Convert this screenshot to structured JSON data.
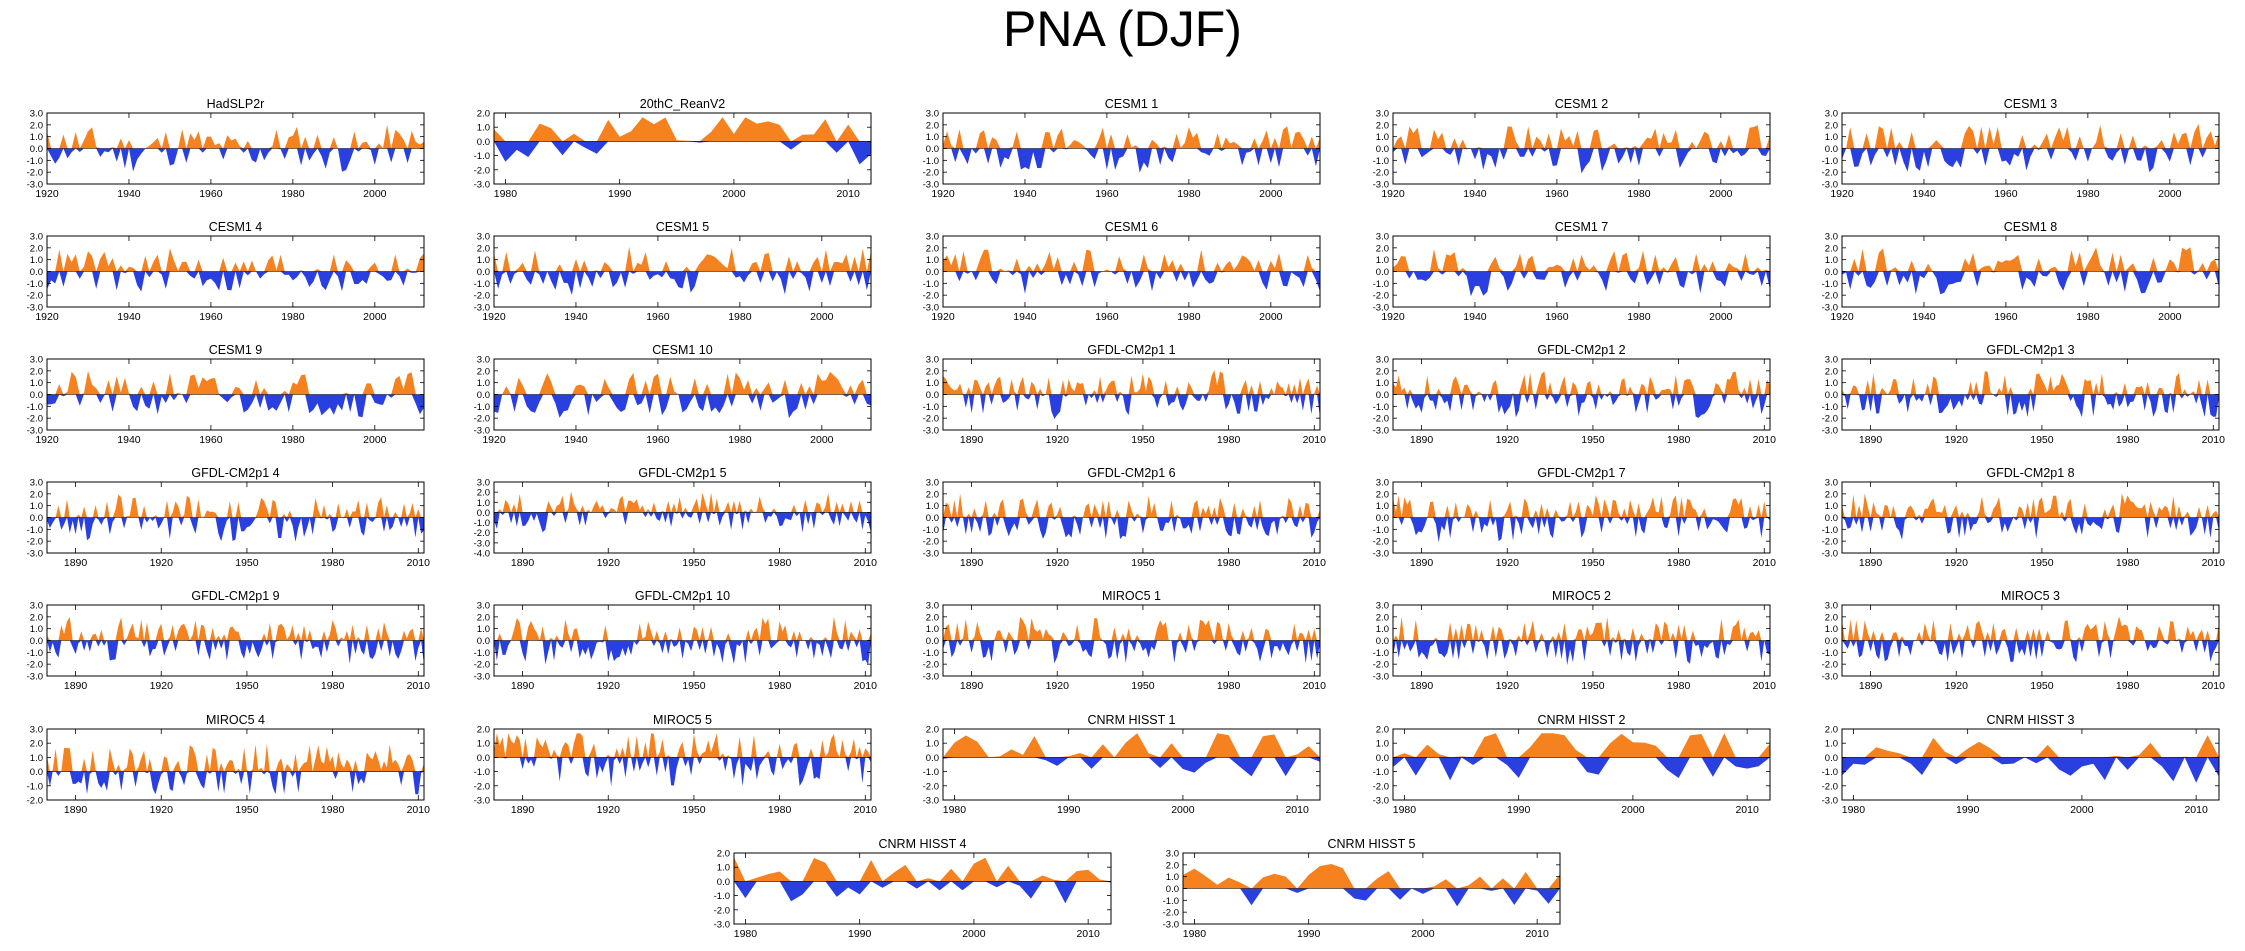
{
  "figure": {
    "title": "PNA (DJF)"
  },
  "colors": {
    "positive": "#f6821f",
    "negative": "#2a3fe0",
    "axis": "#000000",
    "background": "#ffffff"
  },
  "chart_data": [
    {
      "type": "area",
      "title": "HadSLP2r",
      "x_start": 1920,
      "x_end": 2012,
      "xticks": [
        1920,
        1940,
        1960,
        1980,
        2000
      ],
      "yticks": [
        3,
        2,
        1,
        0,
        -1,
        -2,
        -3
      ],
      "ylim": [
        -3,
        3
      ],
      "n": 93,
      "seed": 11,
      "period": 1.4
    },
    {
      "type": "area",
      "title": "20thC_ReanV2",
      "x_start": 1979,
      "x_end": 2012,
      "xticks": [
        1980,
        1990,
        2000,
        2010
      ],
      "yticks": [
        2,
        1,
        0,
        -1,
        -2,
        -3
      ],
      "ylim": [
        -3,
        2
      ],
      "n": 34,
      "seed": 12,
      "period": 4
    },
    {
      "type": "area",
      "title": "CESM1 1",
      "x_start": 1920,
      "x_end": 2012,
      "xticks": [
        1920,
        1940,
        1960,
        1980,
        2000
      ],
      "yticks": [
        3,
        2,
        1,
        0,
        -1,
        -2,
        -3
      ],
      "ylim": [
        -3,
        3
      ],
      "n": 93,
      "seed": 13,
      "period": 1.4
    },
    {
      "type": "area",
      "title": "CESM1 2",
      "x_start": 1920,
      "x_end": 2012,
      "xticks": [
        1920,
        1940,
        1960,
        1980,
        2000
      ],
      "yticks": [
        3,
        2,
        1,
        0,
        -1,
        -2,
        -3
      ],
      "ylim": [
        -3,
        3
      ],
      "n": 93,
      "seed": 14,
      "period": 1.4
    },
    {
      "type": "area",
      "title": "CESM1 3",
      "x_start": 1920,
      "x_end": 2012,
      "xticks": [
        1920,
        1940,
        1960,
        1980,
        2000
      ],
      "yticks": [
        3,
        2,
        1,
        0,
        -1,
        -2,
        -3
      ],
      "ylim": [
        -3,
        3
      ],
      "n": 93,
      "seed": 15,
      "period": 1.4
    },
    {
      "type": "area",
      "title": "CESM1 4",
      "x_start": 1920,
      "x_end": 2012,
      "xticks": [
        1920,
        1940,
        1960,
        1980,
        2000
      ],
      "yticks": [
        3,
        2,
        1,
        0,
        -1,
        -2,
        -3
      ],
      "ylim": [
        -3,
        3
      ],
      "n": 93,
      "seed": 16,
      "period": 1.4
    },
    {
      "type": "area",
      "title": "CESM1 5",
      "x_start": 1920,
      "x_end": 2012,
      "xticks": [
        1920,
        1940,
        1960,
        1980,
        2000
      ],
      "yticks": [
        3,
        2,
        1,
        0,
        -1,
        -2,
        -3
      ],
      "ylim": [
        -3,
        3
      ],
      "n": 93,
      "seed": 17,
      "period": 1.4
    },
    {
      "type": "area",
      "title": "CESM1 6",
      "x_start": 1920,
      "x_end": 2012,
      "xticks": [
        1920,
        1940,
        1960,
        1980,
        2000
      ],
      "yticks": [
        3,
        2,
        1,
        0,
        -1,
        -2,
        -3
      ],
      "ylim": [
        -3,
        3
      ],
      "n": 93,
      "seed": 18,
      "period": 1.4
    },
    {
      "type": "area",
      "title": "CESM1 7",
      "x_start": 1920,
      "x_end": 2012,
      "xticks": [
        1920,
        1940,
        1960,
        1980,
        2000
      ],
      "yticks": [
        3,
        2,
        1,
        0,
        -1,
        -2,
        -3
      ],
      "ylim": [
        -3,
        3
      ],
      "n": 93,
      "seed": 19,
      "period": 1.4
    },
    {
      "type": "area",
      "title": "CESM1 8",
      "x_start": 1920,
      "x_end": 2012,
      "xticks": [
        1920,
        1940,
        1960,
        1980,
        2000
      ],
      "yticks": [
        3,
        2,
        1,
        0,
        -1,
        -2,
        -3
      ],
      "ylim": [
        -3,
        3
      ],
      "n": 93,
      "seed": 20,
      "period": 1.4
    },
    {
      "type": "area",
      "title": "CESM1 9",
      "x_start": 1920,
      "x_end": 2012,
      "xticks": [
        1920,
        1940,
        1960,
        1980,
        2000
      ],
      "yticks": [
        3,
        2,
        1,
        0,
        -1,
        -2,
        -3
      ],
      "ylim": [
        -3,
        3
      ],
      "n": 93,
      "seed": 21,
      "period": 1.4
    },
    {
      "type": "area",
      "title": "CESM1 10",
      "x_start": 1920,
      "x_end": 2012,
      "xticks": [
        1920,
        1940,
        1960,
        1980,
        2000
      ],
      "yticks": [
        3,
        2,
        1,
        0,
        -1,
        -2,
        -3
      ],
      "ylim": [
        -3,
        3
      ],
      "n": 93,
      "seed": 22,
      "period": 1.4
    },
    {
      "type": "area",
      "title": "GFDL-CM2p1 1",
      "x_start": 1880,
      "x_end": 2012,
      "xticks": [
        1890,
        1920,
        1950,
        1980,
        2010
      ],
      "yticks": [
        3,
        2,
        1,
        0,
        -1,
        -2,
        -3
      ],
      "ylim": [
        -3,
        3
      ],
      "n": 133,
      "seed": 23,
      "period": 1.2
    },
    {
      "type": "area",
      "title": "GFDL-CM2p1 2",
      "x_start": 1880,
      "x_end": 2012,
      "xticks": [
        1890,
        1920,
        1950,
        1980,
        2010
      ],
      "yticks": [
        3,
        2,
        1,
        0,
        -1,
        -2,
        -3
      ],
      "ylim": [
        -3,
        3
      ],
      "n": 133,
      "seed": 24,
      "period": 1.2
    },
    {
      "type": "area",
      "title": "GFDL-CM2p1 3",
      "x_start": 1880,
      "x_end": 2012,
      "xticks": [
        1890,
        1920,
        1950,
        1980,
        2010
      ],
      "yticks": [
        3,
        2,
        1,
        0,
        -1,
        -2,
        -3
      ],
      "ylim": [
        -3,
        3
      ],
      "n": 133,
      "seed": 25,
      "period": 1.2
    },
    {
      "type": "area",
      "title": "GFDL-CM2p1 4",
      "x_start": 1880,
      "x_end": 2012,
      "xticks": [
        1890,
        1920,
        1950,
        1980,
        2010
      ],
      "yticks": [
        3,
        2,
        1,
        0,
        -1,
        -2,
        -3
      ],
      "ylim": [
        -3,
        3
      ],
      "n": 133,
      "seed": 26,
      "period": 1.2
    },
    {
      "type": "area",
      "title": "GFDL-CM2p1 5",
      "x_start": 1880,
      "x_end": 2012,
      "xticks": [
        1890,
        1920,
        1950,
        1980,
        2010
      ],
      "yticks": [
        3,
        2,
        1,
        0,
        -1,
        -2,
        -3,
        -4
      ],
      "ylim": [
        -4,
        3
      ],
      "n": 133,
      "seed": 27,
      "period": 1.2
    },
    {
      "type": "area",
      "title": "GFDL-CM2p1 6",
      "x_start": 1880,
      "x_end": 2012,
      "xticks": [
        1890,
        1920,
        1950,
        1980,
        2010
      ],
      "yticks": [
        3,
        2,
        1,
        0,
        -1,
        -2,
        -3
      ],
      "ylim": [
        -3,
        3
      ],
      "n": 133,
      "seed": 28,
      "period": 1.2
    },
    {
      "type": "area",
      "title": "GFDL-CM2p1 7",
      "x_start": 1880,
      "x_end": 2012,
      "xticks": [
        1890,
        1920,
        1950,
        1980,
        2010
      ],
      "yticks": [
        3,
        2,
        1,
        0,
        -1,
        -2,
        -3
      ],
      "ylim": [
        -3,
        3
      ],
      "n": 133,
      "seed": 29,
      "period": 1.2
    },
    {
      "type": "area",
      "title": "GFDL-CM2p1 8",
      "x_start": 1880,
      "x_end": 2012,
      "xticks": [
        1890,
        1920,
        1950,
        1980,
        2010
      ],
      "yticks": [
        3,
        2,
        1,
        0,
        -1,
        -2,
        -3
      ],
      "ylim": [
        -3,
        3
      ],
      "n": 133,
      "seed": 30,
      "period": 1.2
    },
    {
      "type": "area",
      "title": "GFDL-CM2p1 9",
      "x_start": 1880,
      "x_end": 2012,
      "xticks": [
        1890,
        1920,
        1950,
        1980,
        2010
      ],
      "yticks": [
        3,
        2,
        1,
        0,
        -1,
        -2,
        -3
      ],
      "ylim": [
        -3,
        3
      ],
      "n": 133,
      "seed": 31,
      "period": 1.2
    },
    {
      "type": "area",
      "title": "GFDL-CM2p1 10",
      "x_start": 1880,
      "x_end": 2012,
      "xticks": [
        1890,
        1920,
        1950,
        1980,
        2010
      ],
      "yticks": [
        3,
        2,
        1,
        0,
        -1,
        -2,
        -3
      ],
      "ylim": [
        -3,
        3
      ],
      "n": 133,
      "seed": 32,
      "period": 1.2
    },
    {
      "type": "area",
      "title": "MIROC5 1",
      "x_start": 1880,
      "x_end": 2012,
      "xticks": [
        1890,
        1920,
        1950,
        1980,
        2010
      ],
      "yticks": [
        3,
        2,
        1,
        0,
        -1,
        -2,
        -3
      ],
      "ylim": [
        -3,
        3
      ],
      "n": 133,
      "seed": 33,
      "period": 1.2
    },
    {
      "type": "area",
      "title": "MIROC5 2",
      "x_start": 1880,
      "x_end": 2012,
      "xticks": [
        1890,
        1920,
        1950,
        1980,
        2010
      ],
      "yticks": [
        3,
        2,
        1,
        0,
        -1,
        -2,
        -3
      ],
      "ylim": [
        -3,
        3
      ],
      "n": 133,
      "seed": 34,
      "period": 1.2
    },
    {
      "type": "area",
      "title": "MIROC5 3",
      "x_start": 1880,
      "x_end": 2012,
      "xticks": [
        1890,
        1920,
        1950,
        1980,
        2010
      ],
      "yticks": [
        3,
        2,
        1,
        0,
        -1,
        -2,
        -3
      ],
      "ylim": [
        -3,
        3
      ],
      "n": 133,
      "seed": 35,
      "period": 1.2
    },
    {
      "type": "area",
      "title": "MIROC5 4",
      "x_start": 1880,
      "x_end": 2012,
      "xticks": [
        1890,
        1920,
        1950,
        1980,
        2010
      ],
      "yticks": [
        3,
        2,
        1,
        0,
        -1,
        -2
      ],
      "ylim": [
        -2,
        3
      ],
      "n": 133,
      "seed": 36,
      "period": 1.2
    },
    {
      "type": "area",
      "title": "MIROC5 5",
      "x_start": 1880,
      "x_end": 2012,
      "xticks": [
        1890,
        1920,
        1950,
        1980,
        2010
      ],
      "yticks": [
        2,
        1,
        0,
        -1,
        -2,
        -3
      ],
      "ylim": [
        -3,
        2
      ],
      "n": 133,
      "seed": 37,
      "period": 1.2
    },
    {
      "type": "area",
      "title": "CNRM HISST 1",
      "x_start": 1979,
      "x_end": 2012,
      "xticks": [
        1980,
        1990,
        2000,
        2010
      ],
      "yticks": [
        2,
        1,
        0,
        -1,
        -2,
        -3
      ],
      "ylim": [
        -3,
        2
      ],
      "n": 34,
      "seed": 38,
      "period": 3
    },
    {
      "type": "area",
      "title": "CNRM HISST 2",
      "x_start": 1979,
      "x_end": 2012,
      "xticks": [
        1980,
        1990,
        2000,
        2010
      ],
      "yticks": [
        2,
        1,
        0,
        -1,
        -2,
        -3
      ],
      "ylim": [
        -3,
        2
      ],
      "n": 34,
      "seed": 39,
      "period": 3
    },
    {
      "type": "area",
      "title": "CNRM HISST 3",
      "x_start": 1979,
      "x_end": 2012,
      "xticks": [
        1980,
        1990,
        2000,
        2010
      ],
      "yticks": [
        2,
        1,
        0,
        -1,
        -2,
        -3
      ],
      "ylim": [
        -3,
        2
      ],
      "n": 34,
      "seed": 40,
      "period": 3
    },
    {
      "type": "area",
      "title": "CNRM HISST 4",
      "x_start": 1979,
      "x_end": 2012,
      "xticks": [
        1980,
        1990,
        2000,
        2010
      ],
      "yticks": [
        2,
        1,
        0,
        -1,
        -2,
        -3
      ],
      "ylim": [
        -3,
        2
      ],
      "n": 34,
      "seed": 41,
      "period": 3
    },
    {
      "type": "area",
      "title": "CNRM HISST 5",
      "x_start": 1979,
      "x_end": 2012,
      "xticks": [
        1980,
        1990,
        2000,
        2010
      ],
      "yticks": [
        3,
        2,
        1,
        0,
        -1,
        -2,
        -3
      ],
      "ylim": [
        -3,
        3
      ],
      "n": 34,
      "seed": 42,
      "period": 3
    }
  ]
}
